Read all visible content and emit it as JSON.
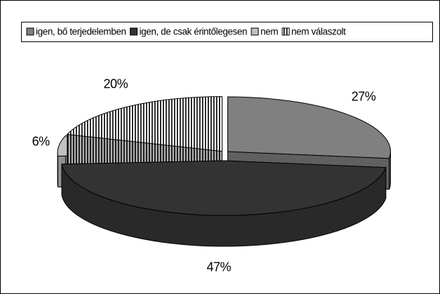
{
  "chart_data": {
    "type": "pie",
    "categories": [
      "igen, bő terjedelemben",
      "igen, de csak érintőlegesen",
      "nem",
      "nem válaszolt"
    ],
    "values": [
      27,
      47,
      6,
      20
    ],
    "value_labels": [
      "27%",
      "47%",
      "6%",
      "20%"
    ],
    "colors": [
      "#808080",
      "#333333",
      "#c0c0c0",
      "striped"
    ],
    "legend": "top"
  }
}
